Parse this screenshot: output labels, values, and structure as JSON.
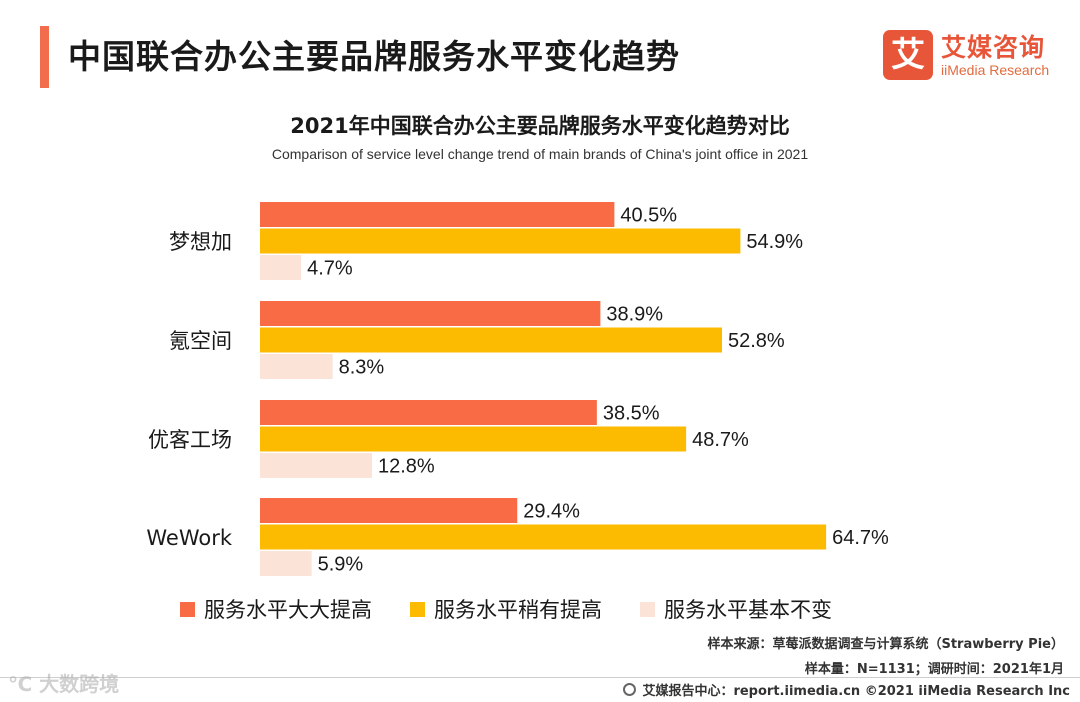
{
  "header": {
    "title": "中国联合办公主要品牌服务水平变化趋势",
    "accent_color": "#f26d4c"
  },
  "logo": {
    "mark": "艾",
    "name_cn": "艾媒咨询",
    "name_en": "iiMedia Research",
    "color": "#e8563a"
  },
  "chart_data": {
    "type": "bar",
    "orientation": "horizontal",
    "title": "2021年中国联合办公主要品牌服务水平变化趋势对比",
    "subtitle": "Comparison of service level change trend of main brands of China's joint office in 2021",
    "categories": [
      "梦想加",
      "氪空间",
      "优客工场",
      "WeWork"
    ],
    "series": [
      {
        "name": "服务水平大大提高",
        "color": "#f86b45",
        "values": [
          40.5,
          38.9,
          38.5,
          29.4
        ]
      },
      {
        "name": "服务水平稍有提高",
        "color": "#fcbb00",
        "values": [
          54.9,
          52.8,
          48.7,
          64.7
        ]
      },
      {
        "name": "服务水平基本不变",
        "color": "#fbe3d8",
        "values": [
          4.7,
          8.3,
          12.8,
          5.9
        ]
      }
    ],
    "value_suffix": "%",
    "xlim": [
      0,
      65
    ],
    "legend_position": "bottom",
    "grid": false
  },
  "notes": {
    "source": "样本来源：草莓派数据调查与计算系统（Strawberry Pie）",
    "sample": "样本量：N=1131；调研时间：2021年1月"
  },
  "footer": {
    "text": "艾媒报告中心：report.iimedia.cn   ©2021  iiMedia Research  Inc"
  },
  "watermark": {
    "text": "℃ 大数跨境"
  }
}
